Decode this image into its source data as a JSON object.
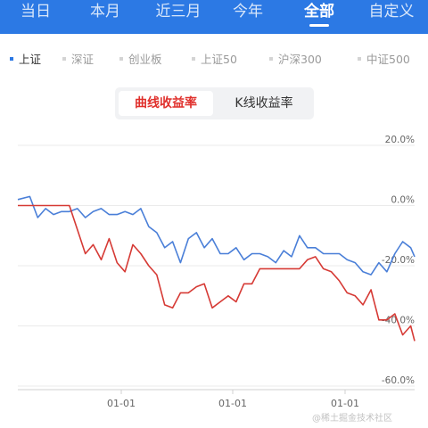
{
  "top_tabs": [
    {
      "label": "当日",
      "active": false
    },
    {
      "label": "本月",
      "active": false
    },
    {
      "label": "近三月",
      "active": false
    },
    {
      "label": "今年",
      "active": false
    },
    {
      "label": "全部",
      "active": true
    },
    {
      "label": "自定义",
      "active": false
    }
  ],
  "index_tabs": [
    {
      "label": "上证",
      "active": true
    },
    {
      "label": "深证",
      "active": false
    },
    {
      "label": "创业板",
      "active": false
    },
    {
      "label": "上证50",
      "active": false
    },
    {
      "label": "沪深300",
      "active": false
    },
    {
      "label": "中证500",
      "active": false
    }
  ],
  "return_toggle": {
    "options": [
      "曲线收益率",
      "K线收益率"
    ],
    "selected": "曲线收益率"
  },
  "chart_data": {
    "type": "line",
    "title": "",
    "xlabel": "",
    "ylabel": "",
    "x_tick_labels": [
      "01-01",
      "01-01",
      "01-01"
    ],
    "y_ticks": [
      20,
      0,
      -20,
      -40,
      -60
    ],
    "y_tick_labels": [
      "20.0%",
      "0.0%",
      "-20.0%",
      "-40.0%",
      "-60.0%"
    ],
    "ylim": [
      -60,
      20
    ],
    "x": [
      0,
      3,
      5,
      7,
      9,
      11,
      13,
      15,
      17,
      19,
      21,
      23,
      25,
      27,
      29,
      31,
      33,
      35,
      37,
      39,
      41,
      43,
      45,
      47,
      49,
      51,
      53,
      55,
      57,
      59,
      61,
      63,
      65,
      67,
      69,
      71,
      73,
      75,
      77,
      79,
      81,
      83,
      85,
      87,
      89,
      91,
      93,
      95,
      97,
      99,
      100
    ],
    "series": [
      {
        "color": "#4a7fd8",
        "values": [
          2,
          3,
          -4,
          -1,
          -3,
          -2,
          -2,
          -1,
          -4,
          -2,
          -1,
          -3,
          -3,
          -2,
          -3,
          -1,
          -7,
          -9,
          -14,
          -12,
          -19,
          -11,
          -9,
          -14,
          -11,
          -16,
          -16,
          -14,
          -18,
          -16,
          -16,
          -17,
          -19,
          -15,
          -17,
          -10,
          -14,
          -14,
          -16,
          -16,
          -16,
          -18,
          -19,
          -22,
          -23,
          -19,
          -22,
          -16,
          -12,
          -14,
          -17
        ]
      },
      {
        "color": "#d63a35",
        "values": [
          0,
          0,
          0,
          0,
          0,
          0,
          0,
          -8,
          -16,
          -13,
          -18,
          -11,
          -19,
          -22,
          -13,
          -16,
          -20,
          -23,
          -33,
          -34,
          -29,
          -29,
          -27,
          -26,
          -34,
          -32,
          -30,
          -32,
          -26,
          -26,
          -21,
          -21,
          -21,
          -21,
          -21,
          -21,
          -18,
          -17,
          -21,
          -22,
          -25,
          -29,
          -30,
          -33,
          -28,
          -38,
          -38,
          -36,
          -43,
          -40,
          -45
        ]
      }
    ]
  },
  "watermark": "@稀土掘金技术社区"
}
